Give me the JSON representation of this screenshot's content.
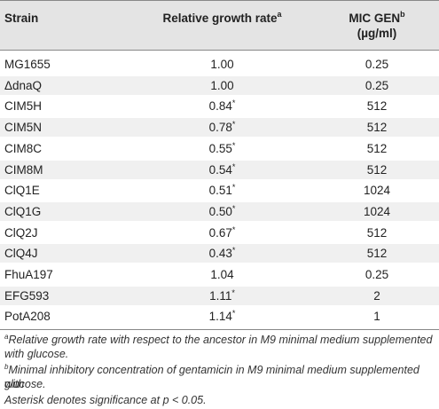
{
  "header": {
    "strain": "Strain",
    "rgr": "Relative growth rate",
    "rgr_sup": "a",
    "mic_line1": "MIC GEN",
    "mic_sup": "b",
    "mic_line2": "(µg/ml)"
  },
  "rows": [
    {
      "strain": "MG1655",
      "rgr": "1.00",
      "sig": "",
      "mic": "0.25"
    },
    {
      "strain": "ΔdnaQ",
      "rgr": "1.00",
      "sig": "",
      "mic": "0.25"
    },
    {
      "strain": "CIM5H",
      "rgr": "0.84",
      "sig": "*",
      "mic": "512"
    },
    {
      "strain": "CIM5N",
      "rgr": "0.78",
      "sig": "*",
      "mic": "512"
    },
    {
      "strain": "CIM8C",
      "rgr": "0.55",
      "sig": "*",
      "mic": "512"
    },
    {
      "strain": "CIM8M",
      "rgr": "0.54",
      "sig": "*",
      "mic": "512"
    },
    {
      "strain": "ClQ1E",
      "rgr": "0.51",
      "sig": "*",
      "mic": "1024"
    },
    {
      "strain": "ClQ1G",
      "rgr": "0.50",
      "sig": "*",
      "mic": "1024"
    },
    {
      "strain": "ClQ2J",
      "rgr": "0.67",
      "sig": "*",
      "mic": "512"
    },
    {
      "strain": "ClQ4J",
      "rgr": "0.43",
      "sig": "*",
      "mic": "512"
    },
    {
      "strain": "FhuA197",
      "rgr": "1.04",
      "sig": "",
      "mic": "0.25"
    },
    {
      "strain": "EFG593",
      "rgr": "1.11",
      "sig": "*",
      "mic": "2"
    },
    {
      "strain": "PotA208",
      "rgr": "1.14",
      "sig": "*",
      "mic": "1"
    }
  ],
  "footnotes": {
    "a_mark": "a",
    "a_line1": "Relative growth rate with respect to the ancestor in M9 minimal medium supplemented",
    "a_line2": "with glucose.",
    "b_mark": "b",
    "b_line1": "Minimal inhibitory concentration of gentamicin in M9 minimal medium supplemented with",
    "b_line2": "glucose.",
    "asterisk": "Asterisk denotes significance at p < 0.05."
  }
}
